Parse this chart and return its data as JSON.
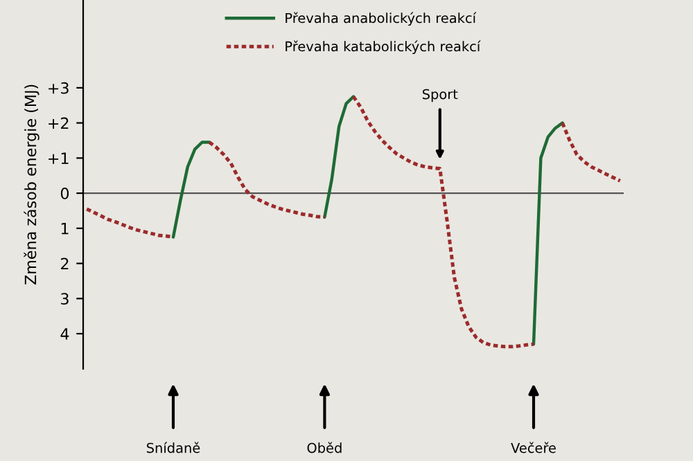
{
  "chart_data": {
    "type": "line",
    "ylabel": "Změna zásob energie (MJ)",
    "categories": [
      null,
      null,
      null,
      null,
      null,
      null,
      null,
      null,
      null,
      null,
      null,
      null,
      null,
      null,
      null,
      null,
      null,
      null,
      null,
      null,
      null,
      null,
      null,
      null,
      null,
      null,
      null,
      null,
      null,
      null,
      null,
      null,
      null,
      null,
      null,
      null,
      null,
      null,
      null,
      null,
      null,
      null,
      null,
      null,
      null,
      null,
      null,
      null,
      null,
      null,
      null,
      null,
      null,
      null,
      null,
      null,
      null,
      null,
      null,
      null,
      null,
      null,
      null,
      null,
      null,
      null,
      null,
      null,
      null,
      null,
      null,
      null,
      null,
      null,
      null
    ],
    "series": [
      {
        "name": "Převaha anabolických reakcí",
        "color": "#1e6b35",
        "line_style": "solid",
        "values": [
          null,
          null,
          null,
          null,
          null,
          null,
          null,
          null,
          null,
          null,
          null,
          null,
          -1.25,
          -0.2,
          0.75,
          1.25,
          1.45,
          1.45,
          null,
          null,
          null,
          null,
          null,
          null,
          null,
          null,
          null,
          null,
          null,
          null,
          null,
          null,
          null,
          -0.68,
          0.4,
          1.9,
          2.55,
          2.75,
          null,
          null,
          null,
          null,
          null,
          null,
          null,
          null,
          null,
          null,
          null,
          null,
          null,
          null,
          null,
          null,
          null,
          null,
          null,
          null,
          null,
          null,
          null,
          null,
          -4.3,
          1.0,
          1.6,
          1.85,
          2.0,
          null,
          null,
          null,
          null,
          null,
          null,
          null,
          null
        ]
      },
      {
        "name": "Převaha katabolických reakcí",
        "color": "#9b2b2b",
        "line_style": "dotted",
        "values": [
          -0.45,
          -0.55,
          -0.65,
          -0.75,
          -0.82,
          -0.9,
          -0.98,
          -1.05,
          -1.1,
          -1.15,
          -1.2,
          -1.22,
          -1.25,
          null,
          null,
          null,
          null,
          1.45,
          1.3,
          1.1,
          0.85,
          0.45,
          0.1,
          -0.1,
          -0.2,
          -0.3,
          -0.38,
          -0.45,
          -0.5,
          -0.55,
          -0.6,
          -0.63,
          -0.67,
          -0.68,
          null,
          null,
          null,
          2.75,
          2.45,
          2.05,
          1.75,
          1.5,
          1.3,
          1.12,
          1.0,
          0.88,
          0.8,
          0.75,
          0.72,
          0.7,
          -0.8,
          -2.4,
          -3.3,
          -3.8,
          -4.1,
          -4.25,
          -4.32,
          -4.35,
          -4.37,
          -4.37,
          -4.35,
          -4.32,
          -4.3,
          null,
          null,
          null,
          2.0,
          1.5,
          1.1,
          0.9,
          0.75,
          0.65,
          0.55,
          0.45,
          0.35
        ]
      }
    ],
    "ylim": [
      -5,
      5.5
    ],
    "yticks": [
      {
        "value": -4,
        "label": "4"
      },
      {
        "value": -3,
        "label": "3"
      },
      {
        "value": -2,
        "label": "2"
      },
      {
        "value": -1,
        "label": "1"
      },
      0,
      {
        "value": 1,
        "label": "+1"
      },
      {
        "value": 2,
        "label": "+2"
      },
      {
        "value": 3,
        "label": "+3"
      }
    ],
    "annotations": [
      "Snídaně",
      "Oběd",
      "Sport",
      "Večeře"
    ],
    "ref_lines": [
      {
        "axis": "y",
        "value": 0,
        "color": "#555555"
      }
    ],
    "legend": "top",
    "grid": false
  }
}
